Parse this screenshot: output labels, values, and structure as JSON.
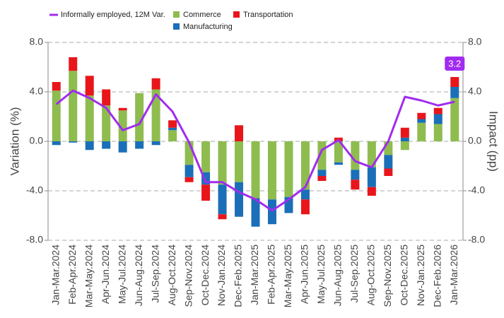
{
  "chart_data": {
    "type": "bar",
    "categories": [
      "Jan-Mar.2024",
      "Feb-Apr.2024",
      "Mar-May.2024",
      "Apr-Jun.2024",
      "May-Jul.2024",
      "Jun-Aug.2024",
      "Jul-Sep.2024",
      "Aug-Oct.2024",
      "Sep-Nov.2024",
      "Oct-Dec.2024",
      "Nov-Jan.2024",
      "Dec-Feb.2025",
      "Jan-Mar.2025",
      "Feb-Apr.2025",
      "Mar-May.2025",
      "Apr-Jun.2025",
      "May-Jul.2025",
      "Jun-Aug.2025",
      "Jul-Sep.2025",
      "Aug-Oct.2025",
      "Sep-Nov.2025",
      "Oct-Dec.2025",
      "Nov-Jan.2025",
      "Dec-Feb.2026",
      "Jan-Mar.2026"
    ],
    "series": [
      {
        "name": "Informally employed, 12M Var.",
        "type": "line",
        "axis": "y",
        "color": "#a12bef",
        "values": [
          3.0,
          4.1,
          3.5,
          2.7,
          0.9,
          1.4,
          3.8,
          2.4,
          -0.1,
          -3.3,
          -3.3,
          -4.1,
          -4.7,
          -5.6,
          -4.7,
          -3.7,
          -0.7,
          0.1,
          -1.6,
          -2.1,
          0.0,
          3.6,
          3.3,
          2.9,
          3.2
        ]
      },
      {
        "name": "Commerce",
        "type": "bar",
        "axis": "y2",
        "color": "#8fbc4f",
        "values": [
          4.1,
          5.7,
          3.7,
          2.9,
          2.5,
          3.9,
          4.2,
          0.9,
          -1.9,
          -2.5,
          -3.5,
          -3.3,
          -4.6,
          -4.7,
          -4.5,
          -3.9,
          -2.3,
          -1.7,
          -2.3,
          -2.1,
          -1.1,
          -0.7,
          1.5,
          1.4,
          3.5
        ]
      },
      {
        "name": "Manufacturing",
        "type": "bar",
        "axis": "y2",
        "color": "#1a6fb8",
        "values": [
          -0.3,
          -0.1,
          -0.7,
          -0.6,
          -0.9,
          -0.6,
          -0.3,
          0.2,
          -1.0,
          -1.0,
          -2.4,
          -2.8,
          -2.3,
          -2.0,
          -1.3,
          -0.8,
          -0.5,
          -0.2,
          -0.8,
          -1.6,
          -1.1,
          0.3,
          0.3,
          0.8,
          0.9
        ]
      },
      {
        "name": "Transportation",
        "type": "bar",
        "axis": "y2",
        "color": "#e8161b",
        "values": [
          0.7,
          1.1,
          1.6,
          1.3,
          0.2,
          0,
          0.9,
          0.6,
          -0.4,
          -1.3,
          -0.4,
          1.3,
          0,
          0,
          0,
          -1.2,
          -0.4,
          0.3,
          -0.8,
          -0.7,
          -0.6,
          0.8,
          0.5,
          0.5,
          0.8
        ]
      }
    ],
    "ylabel": "Variation (%)",
    "y2label": "Impact (pp)",
    "ylim": [
      -8,
      8
    ],
    "yticks": [
      {
        "value": -8,
        "label": "-8.0"
      },
      {
        "value": -4,
        "label": "-4.0"
      },
      {
        "value": 0,
        "label": "0.0"
      },
      {
        "value": 4,
        "label": "4.0"
      },
      {
        "value": 8,
        "label": "8.0"
      }
    ],
    "y2lim": [
      -8,
      8
    ],
    "y2ticks": [
      {
        "value": -8,
        "label": "-8.0"
      },
      {
        "value": -4,
        "label": "-4.0"
      },
      {
        "value": 0,
        "label": "0.0"
      },
      {
        "value": 4,
        "label": "4.0"
      },
      {
        "value": 8,
        "label": "8.0"
      }
    ],
    "grid": true,
    "legend": "top"
  }
}
